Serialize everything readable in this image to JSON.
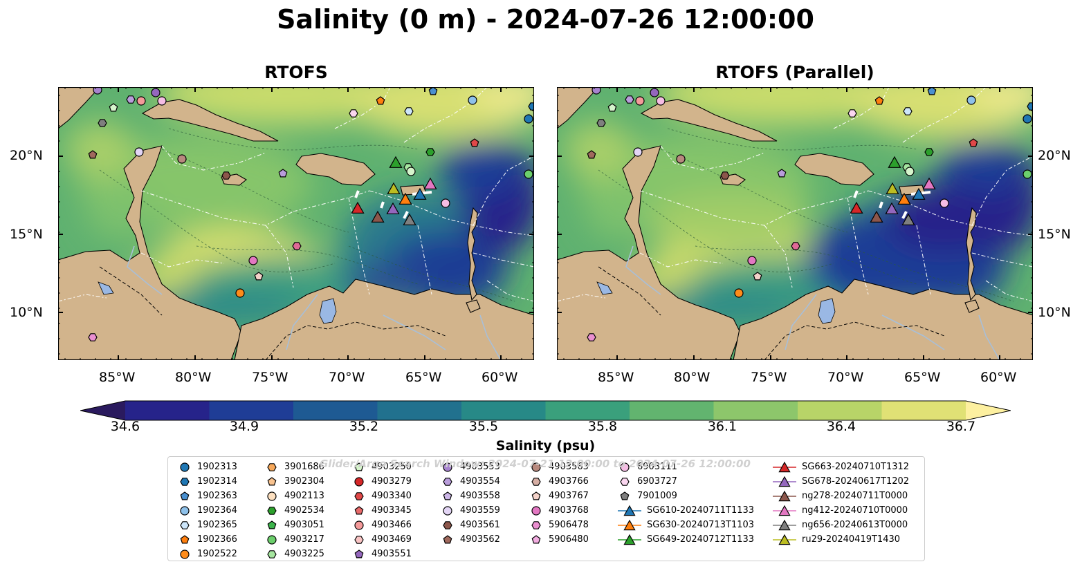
{
  "title": "Salinity (0 m) - 2024-07-26 12:00:00",
  "panels": {
    "left_title": "RTOFS",
    "right_title": "RTOFS (Parallel)"
  },
  "lat_labels": [
    "20°N",
    "15°N",
    "10°N"
  ],
  "lon_labels": [
    "85°W",
    "80°W",
    "75°W",
    "70°W",
    "65°W",
    "60°W"
  ],
  "colorbar": {
    "label": "Salinity (psu)",
    "min": 34.6,
    "max": 36.7,
    "ticks": [
      "34.6",
      "34.9",
      "35.2",
      "35.5",
      "35.8",
      "36.1",
      "36.4",
      "36.7"
    ],
    "colors": [
      "#2a1a5e",
      "#26238a",
      "#1f3d96",
      "#1e5a93",
      "#21718e",
      "#278987",
      "#3aa07c",
      "#62b46f",
      "#8dc66b",
      "#b8d468",
      "#e0e175",
      "#fdf0a0"
    ]
  },
  "legend": {
    "watermark": "Glider/Argo Search Window: 2024-07-21 12:00:00 to 2024-07-26 12:00:00",
    "columns": [
      [
        {
          "label": "1902313",
          "shape": "circle",
          "color": "#1f77b4"
        },
        {
          "label": "1902314",
          "shape": "hexagon",
          "color": "#1f77b4"
        },
        {
          "label": "1902363",
          "shape": "pentagon",
          "color": "#4a90d0"
        },
        {
          "label": "1902364",
          "shape": "circle",
          "color": "#8ec1ea"
        },
        {
          "label": "1902365",
          "shape": "hexagon",
          "color": "#cde6fa"
        },
        {
          "label": "1902366",
          "shape": "pentagon",
          "color": "#ff7f0e"
        },
        {
          "label": "1902522",
          "shape": "circle",
          "color": "#ff8c1a"
        }
      ],
      [
        {
          "label": "3901686",
          "shape": "hexagon",
          "color": "#f7a85a"
        },
        {
          "label": "3902304",
          "shape": "pentagon",
          "color": "#f9c38f"
        },
        {
          "label": "4902113",
          "shape": "circle",
          "color": "#fde0c0"
        },
        {
          "label": "4902534",
          "shape": "hexagon",
          "color": "#2ca02c"
        },
        {
          "label": "4903051",
          "shape": "pentagon",
          "color": "#3cb44b"
        },
        {
          "label": "4903217",
          "shape": "circle",
          "color": "#6ccf6c"
        },
        {
          "label": "4903225",
          "shape": "hexagon",
          "color": "#a6e6a0"
        }
      ],
      [
        {
          "label": "4903250",
          "shape": "pentagon",
          "color": "#d6f5cc"
        },
        {
          "label": "4903279",
          "shape": "circle",
          "color": "#d62728"
        },
        {
          "label": "4903340",
          "shape": "hexagon",
          "color": "#e04848"
        },
        {
          "label": "4903345",
          "shape": "pentagon",
          "color": "#e86a6a"
        },
        {
          "label": "4903466",
          "shape": "circle",
          "color": "#f49a9a"
        },
        {
          "label": "4903469",
          "shape": "hexagon",
          "color": "#f9c4c4"
        },
        {
          "label": "4903551",
          "shape": "pentagon",
          "color": "#9467bd"
        }
      ],
      [
        {
          "label": "4903553",
          "shape": "circle",
          "color": "#a783cf"
        },
        {
          "label": "4903554",
          "shape": "hexagon",
          "color": "#b99ddb"
        },
        {
          "label": "4903558",
          "shape": "pentagon",
          "color": "#cdb7e8"
        },
        {
          "label": "4903559",
          "shape": "circle",
          "color": "#e3d5f5"
        },
        {
          "label": "4903561",
          "shape": "hexagon",
          "color": "#8c564b"
        },
        {
          "label": "4903562",
          "shape": "pentagon",
          "color": "#a0695d"
        }
      ],
      [
        {
          "label": "4903563",
          "shape": "circle",
          "color": "#b8897e"
        },
        {
          "label": "4903766",
          "shape": "hexagon",
          "color": "#d6aea4"
        },
        {
          "label": "4903767",
          "shape": "pentagon",
          "color": "#f4d2c9"
        },
        {
          "label": "4903768",
          "shape": "circle",
          "color": "#e377c2"
        },
        {
          "label": "5906478",
          "shape": "hexagon",
          "color": "#ea8fd0"
        },
        {
          "label": "5906480",
          "shape": "pentagon",
          "color": "#f2ace0"
        }
      ],
      [
        {
          "label": "6903111",
          "shape": "circle",
          "color": "#f5bde4"
        },
        {
          "label": "6903727",
          "shape": "hexagon",
          "color": "#fad6ef"
        },
        {
          "label": "7901009",
          "shape": "pentagon",
          "color": "#7f7f7f"
        },
        {
          "label": "SG610-20240711T1133",
          "shape": "triangle",
          "color": "#1f77b4"
        },
        {
          "label": "SG630-20240713T1103",
          "shape": "triangle",
          "color": "#ff7f0e"
        },
        {
          "label": "SG649-20240712T1133",
          "shape": "triangle",
          "color": "#2ca02c"
        }
      ],
      [
        {
          "label": "SG663-20240710T1312",
          "shape": "triangle",
          "color": "#d62728"
        },
        {
          "label": "SG678-20240617T1202",
          "shape": "triangle",
          "color": "#9467bd"
        },
        {
          "label": "ng278-20240711T0000",
          "shape": "triangle",
          "color": "#8c564b"
        },
        {
          "label": "ng412-20240710T0000",
          "shape": "triangle",
          "color": "#e377c2"
        },
        {
          "label": "ng656-20240613T0000",
          "shape": "triangle",
          "color": "#7f7f7f"
        },
        {
          "label": "ru29-20240419T1430",
          "shape": "triangle",
          "color": "#bcbd22"
        }
      ]
    ]
  }
}
